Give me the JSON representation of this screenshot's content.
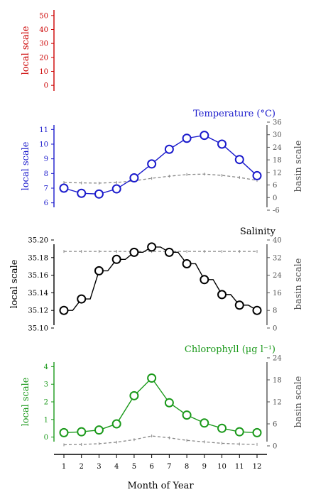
{
  "chart_data": [
    {
      "type": "line",
      "title": "",
      "ylabel_left": "local scale",
      "color": "#cc0000",
      "ylim": [
        -5,
        55
      ],
      "yticks": [
        0,
        10,
        20,
        30,
        40,
        50
      ],
      "series": []
    },
    {
      "type": "line",
      "title": "Temperature (°C)",
      "ylabel_left": "local scale",
      "ylabel_right": "basin scale",
      "color": "#1a1acc",
      "ylim": [
        5.5,
        11.5
      ],
      "yticks": [
        6,
        7,
        8,
        9,
        10,
        11
      ],
      "ylim_right": [
        -6,
        36
      ],
      "yticks_right": [
        -6,
        0,
        6,
        12,
        18,
        24,
        30,
        36
      ],
      "x": [
        1,
        2,
        3,
        4,
        5,
        6,
        7,
        8,
        9,
        10,
        11,
        12
      ],
      "local_values": [
        7.0,
        6.65,
        6.6,
        6.95,
        7.7,
        8.65,
        9.65,
        10.4,
        10.6,
        10.0,
        8.95,
        7.85
      ],
      "basin_values": [
        7.2,
        7.0,
        6.9,
        7.2,
        8.0,
        9.2,
        10.2,
        11.0,
        11.2,
        10.6,
        9.6,
        8.2
      ]
    },
    {
      "type": "line",
      "title": "Salinity",
      "ylabel_left": "local scale",
      "ylabel_right": "basin scale",
      "color": "#000000",
      "ylim": [
        35.1,
        35.2
      ],
      "yticks": [
        35.1,
        35.12,
        35.14,
        35.16,
        35.18,
        35.2
      ],
      "ytick_labels": [
        "35.10",
        "35.12",
        "35.14",
        "35.16",
        "35.18",
        "35.20"
      ],
      "ylim_right": [
        0,
        40
      ],
      "yticks_right": [
        0,
        8,
        16,
        24,
        32,
        40
      ],
      "x": [
        1,
        2,
        3,
        4,
        5,
        6,
        7,
        8,
        9,
        10,
        11,
        12
      ],
      "local_values": [
        35.12,
        35.133,
        35.165,
        35.178,
        35.186,
        35.192,
        35.186,
        35.173,
        35.155,
        35.138,
        35.126,
        35.12
      ],
      "basin_values": [
        34.8,
        34.8,
        34.8,
        34.8,
        34.8,
        34.8,
        34.8,
        34.8,
        34.8,
        34.8,
        34.8,
        34.8
      ]
    },
    {
      "type": "line",
      "title": "Chlorophyll (µg l⁻¹)",
      "ylabel_left": "local scale",
      "ylabel_right": "basin scale",
      "color": "#1a991a",
      "ylim": [
        -0.5,
        4.5
      ],
      "yticks": [
        0,
        1,
        2,
        3,
        4
      ],
      "ylim_right": [
        0,
        24
      ],
      "yticks_right": [
        0,
        6,
        12,
        18,
        24
      ],
      "x": [
        1,
        2,
        3,
        4,
        5,
        6,
        7,
        8,
        9,
        10,
        11,
        12
      ],
      "local_values": [
        0.25,
        0.3,
        0.4,
        0.75,
        2.35,
        3.35,
        1.95,
        1.25,
        0.8,
        0.5,
        0.3,
        0.25
      ],
      "basin_values": [
        0.3,
        0.4,
        0.6,
        1.0,
        1.7,
        2.7,
        2.2,
        1.5,
        1.1,
        0.7,
        0.5,
        0.4
      ]
    }
  ],
  "xaxis": {
    "label": "Month of Year",
    "ticks": [
      "1",
      "2",
      "3",
      "4",
      "5",
      "6",
      "7",
      "8",
      "9",
      "10",
      "11",
      "12"
    ]
  },
  "colors": {
    "basin_line": "#888888"
  }
}
